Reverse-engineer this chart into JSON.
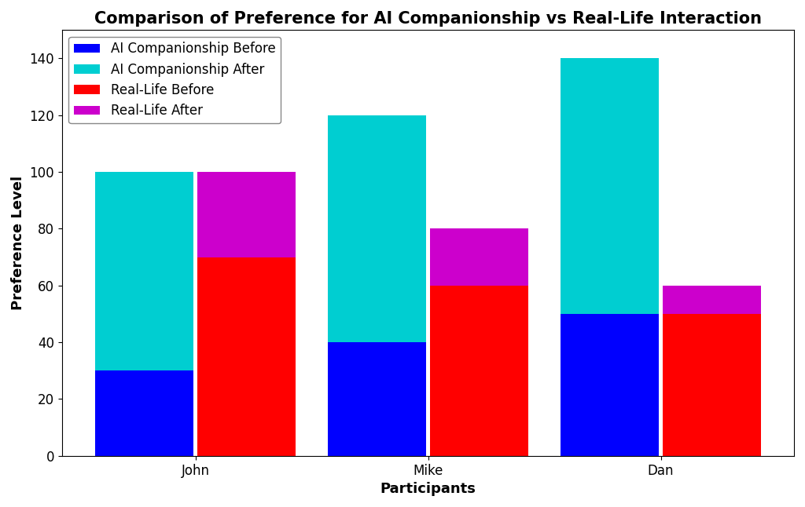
{
  "title": "Comparison of Preference for AI Companionship vs Real-Life Interaction",
  "xlabel": "Participants",
  "ylabel": "Preference Level",
  "participants": [
    "John",
    "Mike",
    "Dan"
  ],
  "ai_before": [
    30,
    40,
    50
  ],
  "ai_after_segment": [
    70,
    80,
    90
  ],
  "real_before": [
    70,
    60,
    50
  ],
  "real_after_segment": [
    30,
    20,
    10
  ],
  "colors": {
    "ai_before": "#0000FF",
    "ai_after": "#00CED1",
    "real_before": "#FF0000",
    "real_after": "#CC00CC"
  },
  "legend_labels": [
    "AI Companionship Before",
    "AI Companionship After",
    "Real-Life Before",
    "Real-Life After"
  ],
  "ylim": [
    0,
    150
  ],
  "yticks": [
    0,
    20,
    40,
    60,
    80,
    100,
    120,
    140
  ],
  "bar_width": 0.42,
  "bar_gap": 0.02,
  "title_fontsize": 15,
  "label_fontsize": 13,
  "tick_fontsize": 12,
  "legend_fontsize": 12,
  "background_color": "#FFFFFF"
}
